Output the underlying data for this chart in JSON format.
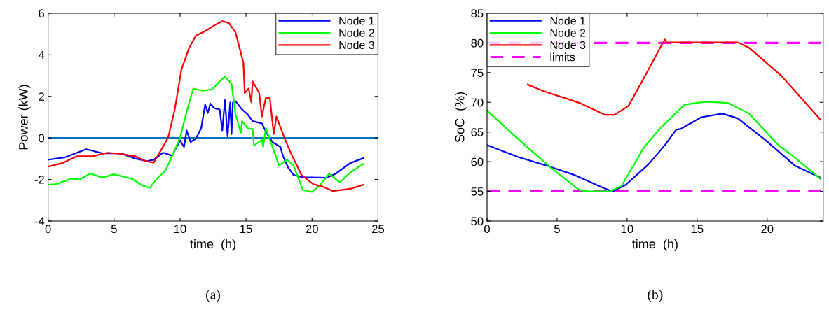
{
  "chart_data": [
    {
      "type": "line",
      "xlabel": "time  (h)",
      "ylabel": "Power (kW)",
      "annotations": [
        "(a)"
      ],
      "xlim": [
        0,
        25
      ],
      "xticks": [
        0,
        5,
        10,
        15,
        20,
        25
      ],
      "ylim": [
        -4,
        6
      ],
      "yticks": [
        -4,
        -2,
        0,
        2,
        4,
        6
      ],
      "grid": false,
      "legend": "top right",
      "marker": "none",
      "line_style": "solid",
      "ref_lines": [
        {
          "axis": "y",
          "value": 0,
          "color": "#0072bd",
          "line_style": "solid"
        }
      ],
      "series": [
        {
          "name": "Node 1",
          "color": "#0000ff",
          "x": [
            0,
            1.3,
            2.9,
            4.1,
            5.5,
            6.6,
            7.5,
            8.0,
            8.7,
            9.4,
            10.0,
            10.3,
            10.5,
            10.8,
            11.2,
            11.6,
            11.9,
            12.1,
            12.3,
            12.6,
            13.0,
            13.2,
            13.4,
            13.6,
            13.8,
            13.9,
            14.0,
            14.2,
            14.7,
            15.1,
            15.5,
            16.2,
            16.5,
            17.0,
            17.6,
            17.8,
            18.2,
            18.6,
            19.3,
            21.1,
            21.8,
            22.9,
            23.9
          ],
          "values": [
            -1.05,
            -0.93,
            -0.54,
            -0.74,
            -0.74,
            -0.99,
            -1.12,
            -1.05,
            -0.71,
            -0.85,
            -0.11,
            -0.43,
            0.36,
            -0.2,
            -0.03,
            0.47,
            1.6,
            1.2,
            1.65,
            1.43,
            1.37,
            0.36,
            1.82,
            0.08,
            1.71,
            0.19,
            1.71,
            1.77,
            1.37,
            1.15,
            0.81,
            0.7,
            0.3,
            -0.2,
            -0.43,
            -0.88,
            -1.44,
            -1.78,
            -1.89,
            -1.92,
            -1.72,
            -1.21,
            -0.97
          ]
        },
        {
          "name": "Node 2",
          "color": "#00ff00",
          "x": [
            0,
            0.6,
            1.8,
            2.4,
            3.2,
            4.1,
            5.0,
            6.4,
            7.1,
            7.7,
            8.2,
            8.9,
            9.4,
            10.0,
            10.5,
            11.0,
            11.7,
            12.4,
            13.0,
            13.4,
            13.9,
            14.2,
            14.6,
            14.7,
            15.1,
            15.5,
            15.6,
            16.2,
            16.3,
            16.5,
            17.0,
            17.5,
            18.1,
            18.6,
            19.3,
            20.0,
            20.6,
            21.3,
            22.1,
            22.9,
            23.9
          ],
          "values": [
            -2.25,
            -2.23,
            -1.95,
            -2.0,
            -1.71,
            -1.91,
            -1.75,
            -1.98,
            -2.28,
            -2.4,
            -2.0,
            -1.55,
            -0.88,
            0.02,
            1.26,
            2.38,
            2.27,
            2.33,
            2.72,
            2.95,
            2.61,
            1.15,
            0.25,
            0.81,
            0.47,
            0.42,
            -0.37,
            -0.09,
            -0.43,
            0.47,
            -0.43,
            -1.33,
            -1.05,
            -1.33,
            -2.51,
            -2.6,
            -2.28,
            -1.72,
            -2.14,
            -1.66,
            -1.24
          ]
        },
        {
          "name": "Node 3",
          "color": "#ff0000",
          "x": [
            0,
            1.1,
            2.2,
            3.4,
            4.5,
            5.4,
            6.6,
            7.3,
            8.0,
            8.5,
            9.1,
            9.6,
            10.1,
            10.7,
            11.2,
            11.9,
            12.6,
            13.2,
            13.7,
            14.2,
            14.8,
            14.9,
            15.2,
            15.4,
            15.5,
            16.0,
            16.2,
            16.5,
            16.8,
            17.1,
            17.3,
            17.9,
            18.5,
            19.2,
            20.1,
            20.8,
            21.6,
            22.9,
            23.9
          ],
          "values": [
            -1.38,
            -1.21,
            -0.88,
            -0.88,
            -0.71,
            -0.76,
            -0.88,
            -1.1,
            -1.19,
            -0.65,
            0.02,
            1.37,
            3.28,
            4.35,
            4.92,
            5.14,
            5.42,
            5.62,
            5.53,
            5.08,
            3.62,
            2.16,
            2.38,
            1.71,
            2.72,
            2.16,
            1.03,
            1.93,
            1.93,
            0.19,
            1.03,
            0.02,
            -0.88,
            -1.78,
            -2.23,
            -2.34,
            -2.56,
            -2.45,
            -2.25
          ]
        }
      ]
    },
    {
      "type": "line",
      "xlabel": "time  (h)",
      "ylabel": "SoC  (%)",
      "annotations": [
        "(b)"
      ],
      "xlim": [
        0,
        24
      ],
      "xticks": [
        0,
        5,
        10,
        15,
        20
      ],
      "ylim": [
        50,
        85
      ],
      "yticks": [
        50,
        55,
        60,
        65,
        70,
        75,
        80,
        85
      ],
      "grid": false,
      "legend": "top left",
      "marker": "none",
      "line_style": "solid",
      "ref_lines": [
        {
          "axis": "y",
          "value": 80,
          "label": "limits",
          "color": "#ff00ff",
          "line_style": "dashed"
        },
        {
          "axis": "y",
          "value": 55,
          "color": "#ff00ff",
          "line_style": "dashed"
        }
      ],
      "series": [
        {
          "name": "Node 1",
          "color": "#0000ff",
          "x": [
            0,
            2.2,
            4.3,
            6.3,
            7.8,
            8.7,
            9.0,
            9.9,
            11.5,
            12.7,
            13.5,
            13.8,
            15.3,
            16.8,
            17.9,
            19.9,
            22.0,
            23.8
          ],
          "values": [
            62.8,
            60.8,
            59.3,
            57.7,
            56.1,
            55.2,
            55.0,
            56.1,
            59.5,
            62.8,
            65.4,
            65.5,
            67.5,
            68.1,
            67.3,
            63.6,
            59.3,
            57.3
          ]
        },
        {
          "name": "Node 2",
          "color": "#00ff00",
          "x": [
            0,
            2.7,
            4.5,
            6.6,
            7.3,
            8.8,
            9.6,
            11.2,
            12.3,
            14.1,
            15.6,
            17.2,
            18.7,
            20.8,
            21.6,
            23.8
          ],
          "values": [
            68.6,
            62.8,
            59.1,
            55.2,
            55.0,
            55.0,
            55.9,
            62.4,
            65.5,
            69.6,
            70.1,
            69.9,
            68.1,
            62.8,
            61.4,
            57.1
          ]
        },
        {
          "name": "Node 3",
          "color": "#ff0000",
          "x": [
            2.9,
            3.9,
            6.6,
            8.4,
            9.1,
            10.1,
            11.2,
            12.5,
            12.7,
            12.8,
            17.9,
            18.7,
            21.0,
            23.8
          ],
          "values": [
            73.0,
            72.0,
            69.9,
            67.9,
            67.9,
            69.4,
            74.1,
            79.8,
            80.6,
            80.1,
            80.1,
            79.2,
            74.5,
            67.1
          ]
        }
      ]
    }
  ]
}
